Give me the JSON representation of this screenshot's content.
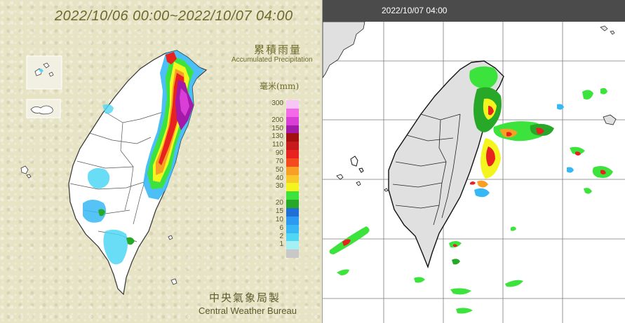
{
  "left_panel": {
    "title": "2022/10/06 00:00~2022/10/07 04:00",
    "legend_title_cn": "累積雨量",
    "legend_title_en": "Accumulated Precipitation",
    "legend_unit": "毫米(mm)",
    "legend": [
      {
        "label": "300",
        "color": "#f7c6f7"
      },
      {
        "label": "",
        "color": "#f26ae6"
      },
      {
        "label": "200",
        "color": "#d93fd6"
      },
      {
        "label": "150",
        "color": "#a319a8"
      },
      {
        "label": "130",
        "color": "#a30f0f"
      },
      {
        "label": "110",
        "color": "#c71b1b"
      },
      {
        "label": "90",
        "color": "#e8221f"
      },
      {
        "label": "70",
        "color": "#f44a1d"
      },
      {
        "label": "50",
        "color": "#f7a025"
      },
      {
        "label": "40",
        "color": "#f9c82b"
      },
      {
        "label": "30",
        "color": "#f4f41e"
      },
      {
        "label": "",
        "color": "#3de33d"
      },
      {
        "label": "20",
        "color": "#28a828"
      },
      {
        "label": "15",
        "color": "#1f6fd6"
      },
      {
        "label": "10",
        "color": "#2b9af0"
      },
      {
        "label": "6",
        "color": "#37b8f5"
      },
      {
        "label": "2",
        "color": "#4fd7f5"
      },
      {
        "label": "1",
        "color": "#a4f0f5"
      },
      {
        "label": "",
        "color": "#c8c8c8"
      }
    ],
    "credit_cn": "中央氣象局製",
    "credit_en": "Central Weather Bureau"
  },
  "right_panel": {
    "title": "2022/10/07 04:00"
  },
  "colors": {
    "background_left": "#e7e4c6",
    "header_right": "#4b4b4b",
    "land_right": "#e0e0e0"
  }
}
